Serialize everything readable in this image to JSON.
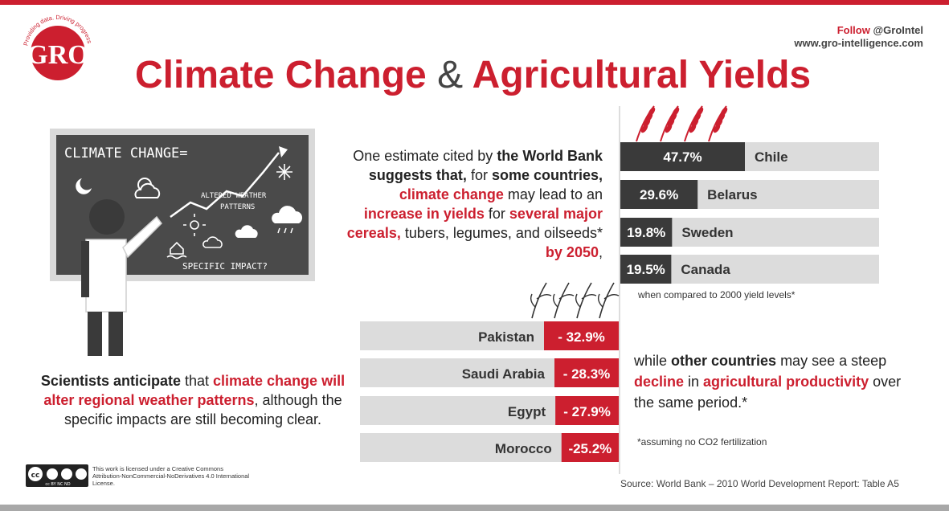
{
  "header": {
    "title_part1": "Climate Change",
    "title_amp": "&",
    "title_part2": "Agricultural Yields",
    "follow_label": "Follow",
    "follow_handle": "@GroIntel",
    "website": "www.gro-intelligence.com"
  },
  "logo": {
    "text": "GRO",
    "tagline": "Providing data. Driving progress"
  },
  "chalkboard": {
    "heading": "CLIMATE CHANGE=",
    "line1": "ALTERED WEATHER",
    "line2": "PATTERNS",
    "footer": "SPECIFIC IMPACT?"
  },
  "left_text": {
    "p1": "Scientists anticipate",
    "p2": " that ",
    "p3": "climate change will alter regional weather patterns",
    "p4": ", although the specific impacts are still becoming clear."
  },
  "mid_text": {
    "t1": "One estimate cited by ",
    "t2": "the World Bank suggests that,",
    "t3": " for ",
    "t4": "some countries, ",
    "t5": "climate change",
    "t6": " may lead to an ",
    "t7": "increase in yields",
    "t8": " for ",
    "t9": "several major cereals,",
    "t10": " tubers, legumes, and oilseeds* ",
    "t11": "by 2050",
    "t12": ","
  },
  "low_text": {
    "t1": "while ",
    "t2": "other countries",
    "t3": " may see a steep ",
    "t4": "decline",
    "t5": " in ",
    "t6": "agricultural productivity",
    "t7": " over the same period.*"
  },
  "notes": {
    "compared": "when compared to 2000 yield levels*",
    "assuming": "*assuming no CO2 fertilization",
    "source": "Source: World Bank – 2010 World Development  Report: Table A5"
  },
  "license": {
    "text": "This work is licensed under a Creative Commons Attribution-NonCommercial-NoDerivatives 4.0 International License.",
    "badge": "cc BY NC ND"
  },
  "colors": {
    "accent": "#cc1f2f",
    "dark": "#3a3a3a",
    "bar_bg": "#dcdcdc"
  },
  "chart_data": {
    "type": "bar",
    "increase": [
      {
        "country": "Chile",
        "value": 47.7,
        "label": "47.7%"
      },
      {
        "country": "Belarus",
        "value": 29.6,
        "label": "29.6%"
      },
      {
        "country": "Sweden",
        "value": 19.8,
        "label": "19.8%"
      },
      {
        "country": "Canada",
        "value": 19.5,
        "label": "19.5%"
      }
    ],
    "decrease": [
      {
        "country": "Pakistan",
        "value": -32.9,
        "label": "- 32.9%"
      },
      {
        "country": "Saudi Arabia",
        "value": -28.3,
        "label": "- 28.3%"
      },
      {
        "country": "Egypt",
        "value": -27.9,
        "label": "- 27.9%"
      },
      {
        "country": "Morocco",
        "value": -25.2,
        "label": "-25.2%"
      }
    ]
  }
}
